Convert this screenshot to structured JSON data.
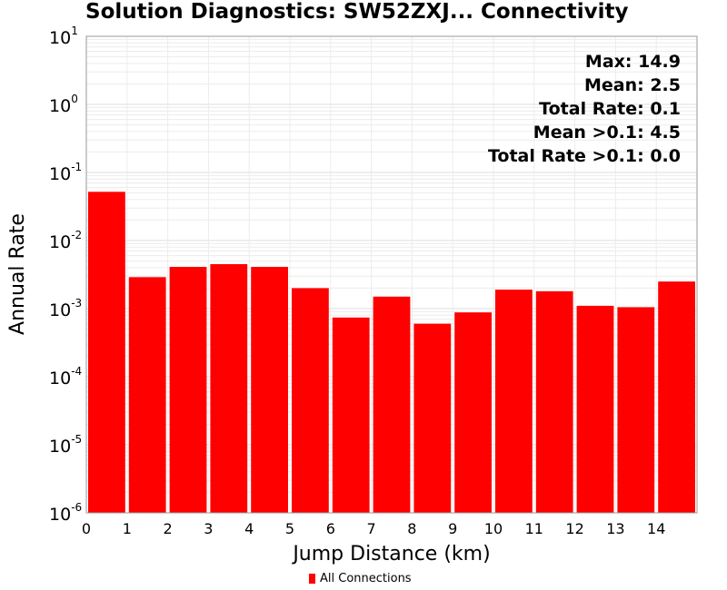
{
  "chart_data": {
    "type": "bar",
    "title": "Solution Diagnostics: SW52ZXJ... Connectivity",
    "xlabel": "Jump Distance (km)",
    "ylabel": "Annual Rate",
    "y_scale": "log",
    "ylim": [
      1e-06,
      10
    ],
    "xlim": [
      0,
      15
    ],
    "x_ticks": [
      0,
      1,
      2,
      3,
      4,
      5,
      6,
      7,
      8,
      9,
      10,
      11,
      12,
      13,
      14
    ],
    "y_ticks": [
      {
        "base": "10",
        "exp": "-6"
      },
      {
        "base": "10",
        "exp": "-5"
      },
      {
        "base": "10",
        "exp": "-4"
      },
      {
        "base": "10",
        "exp": "-3"
      },
      {
        "base": "10",
        "exp": "-2"
      },
      {
        "base": "10",
        "exp": "-1"
      },
      {
        "base": "10",
        "exp": "0"
      },
      {
        "base": "10",
        "exp": "1"
      }
    ],
    "grid": true,
    "series": [
      {
        "name": "All Connections",
        "color": "#ff0000",
        "x": [
          0.5,
          1.5,
          2.5,
          3.5,
          4.5,
          5.5,
          6.5,
          7.5,
          8.5,
          9.5,
          10.5,
          11.5,
          12.5,
          13.5,
          14.5
        ],
        "values": [
          0.052,
          0.0029,
          0.0041,
          0.0045,
          0.0041,
          0.002,
          0.00074,
          0.0015,
          0.0006,
          0.00088,
          0.0019,
          0.0018,
          0.0011,
          0.00105,
          0.0025
        ]
      }
    ],
    "annotations": [
      "Max: 14.9",
      "Mean: 2.5",
      "Total Rate: 0.1",
      "Mean >0.1: 4.5",
      "Total Rate >0.1: 0.0"
    ],
    "legend": {
      "position": "bottom",
      "entries": [
        "All Connections"
      ]
    }
  }
}
